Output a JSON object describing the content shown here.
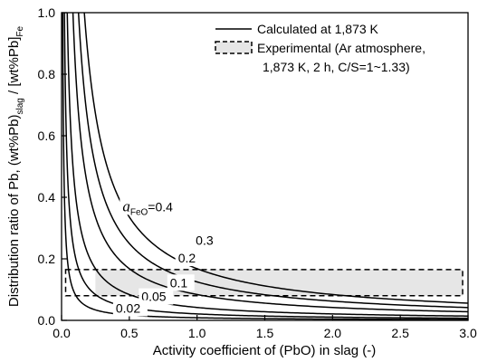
{
  "chart_data": {
    "type": "line",
    "xlabel": "Activity coefficient of (PbO) in slag (-)",
    "ylabel": {
      "prefix": "Distribution ratio of Pb, (wt%Pb)",
      "sub1": "slag",
      "middle": " / [wt%Pb]",
      "sub2": "Fe"
    },
    "xlim": [
      0,
      3.0
    ],
    "ylim": [
      0,
      1.0
    ],
    "x_ticks": [
      "0.0",
      "0.5",
      "1.0",
      "1.5",
      "2.0",
      "2.5",
      "3.0"
    ],
    "y_ticks": [
      "0.0",
      "0.2",
      "0.4",
      "0.6",
      "0.8",
      "1.0"
    ],
    "grid": false,
    "legend_position": "top-right",
    "legend": {
      "line_label": "Calculated at 1,873 K",
      "box_label_1": "Experimental (Ar atmosphere,",
      "box_label_2": "1,873 K, 2 h, C/S=1~1.33)"
    },
    "series": [
      {
        "a_FeO": 0.4,
        "label_prefix": "a",
        "label_sub": "FeO",
        "label_suffix": "=0.4",
        "k": 0.168
      },
      {
        "a_FeO": 0.3,
        "label": "0.3",
        "k": 0.125
      },
      {
        "a_FeO": 0.2,
        "label": "0.2",
        "k": 0.084
      },
      {
        "a_FeO": 0.1,
        "label": "0.1",
        "k": 0.042
      },
      {
        "a_FeO": 0.05,
        "label": "0.05",
        "k": 0.021
      },
      {
        "a_FeO": 0.02,
        "label": "0.02",
        "k": 0.0085
      }
    ],
    "curve_form": "y = k / x",
    "experimental_region": {
      "x": [
        0.03,
        2.96
      ],
      "y": [
        0.08,
        0.165
      ]
    },
    "shaded_region": {
      "x_start": 0.25,
      "x_end": 2.96,
      "y": [
        0.08,
        0.165
      ]
    }
  }
}
